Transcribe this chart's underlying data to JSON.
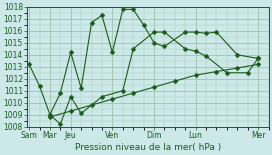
{
  "xlabel": "Pression niveau de la mer( hPa )",
  "bg_color": "#cce8e8",
  "line_color": "#1a5c1a",
  "ylim": [
    1008,
    1018
  ],
  "yticks": [
    1008,
    1009,
    1010,
    1011,
    1012,
    1013,
    1014,
    1015,
    1016,
    1017,
    1018
  ],
  "xmajor_positions": [
    0,
    1,
    2,
    4,
    6,
    8,
    11
  ],
  "xmajor_labels": [
    "Sam",
    "Mar",
    "Jeu",
    "Ven",
    "Dim",
    "Lun",
    "Mer"
  ],
  "xlim": [
    -0.1,
    11.5
  ],
  "line1_x": [
    0,
    0.5,
    1.0,
    1.5,
    2.0,
    2.5,
    3.0,
    3.5,
    4.0,
    4.5,
    5.0,
    5.5,
    6.0,
    6.5,
    7.5,
    8.0,
    8.5,
    9.0,
    10.0,
    11.0
  ],
  "line1_y": [
    1013.2,
    1011.4,
    1009.0,
    1010.8,
    1014.2,
    1011.2,
    1016.7,
    1017.3,
    1014.2,
    1017.8,
    1017.8,
    1016.5,
    1015.0,
    1014.7,
    1015.9,
    1015.9,
    1015.8,
    1015.9,
    1014.0,
    1013.7
  ],
  "line2_x": [
    1.0,
    1.5,
    2.0,
    2.5,
    3.5,
    4.5,
    5.0,
    6.0,
    6.5,
    7.5,
    8.0,
    8.5,
    9.5,
    10.5,
    11.0
  ],
  "line2_y": [
    1009.0,
    1008.2,
    1010.5,
    1009.1,
    1010.5,
    1011.0,
    1014.5,
    1015.9,
    1015.9,
    1014.5,
    1014.3,
    1013.9,
    1012.5,
    1012.5,
    1013.7
  ],
  "line3_x": [
    1.0,
    2.0,
    3.0,
    4.0,
    5.0,
    6.0,
    7.0,
    8.0,
    9.0,
    10.0,
    11.0
  ],
  "line3_y": [
    1008.8,
    1009.3,
    1009.8,
    1010.3,
    1010.8,
    1011.3,
    1011.8,
    1012.3,
    1012.6,
    1012.9,
    1013.2
  ],
  "marker_size": 2.5,
  "line_width": 0.8,
  "ytick_fontsize": 5.5,
  "xtick_fontsize": 5.5,
  "xlabel_fontsize": 6.5
}
